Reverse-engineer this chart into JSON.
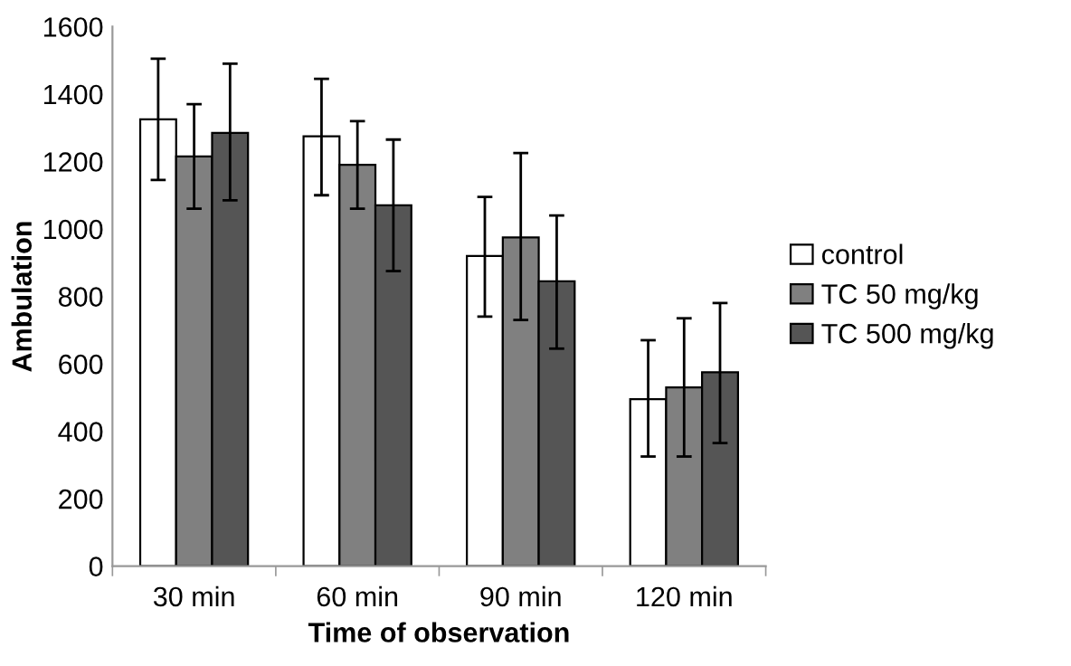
{
  "chart_data": {
    "type": "bar",
    "xlabel": "Time of observation",
    "ylabel": "Ambulation",
    "categories": [
      "30 min",
      "60 min",
      "90 min",
      "120 min"
    ],
    "series": [
      {
        "name": "control",
        "color": "#ffffff",
        "values": [
          1325,
          1275,
          920,
          495
        ],
        "errors": [
          [
            1145,
            1505
          ],
          [
            1100,
            1445
          ],
          [
            740,
            1095
          ],
          [
            325,
            670
          ]
        ]
      },
      {
        "name": "TC 50 mg/kg",
        "color": "#808080",
        "values": [
          1215,
          1190,
          975,
          530
        ],
        "errors": [
          [
            1060,
            1370
          ],
          [
            1060,
            1320
          ],
          [
            730,
            1225
          ],
          [
            325,
            735
          ]
        ]
      },
      {
        "name": "TC 500 mg/kg",
        "color": "#555555",
        "values": [
          1285,
          1070,
          845,
          575
        ],
        "errors": [
          [
            1085,
            1490
          ],
          [
            875,
            1265
          ],
          [
            645,
            1040
          ],
          [
            365,
            780
          ]
        ]
      }
    ],
    "ylim": [
      0,
      1600
    ],
    "yticks": [
      0,
      200,
      400,
      600,
      800,
      1000,
      1200,
      1400,
      1600
    ],
    "grid": false,
    "legend": "right"
  }
}
